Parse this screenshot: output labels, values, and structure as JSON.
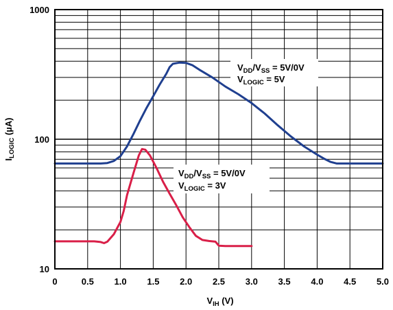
{
  "chart_data": {
    "type": "line",
    "title": "",
    "xlabel": {
      "main": "V",
      "sub": "IH",
      "unit": " (V)"
    },
    "ylabel": {
      "main": "I",
      "sub": "LOGIC",
      "unit": " (µA)"
    },
    "xlim": [
      0,
      5.0
    ],
    "ylim": [
      10,
      1000
    ],
    "yscale": "log",
    "grid": true,
    "xticks": [
      "0",
      "0.5",
      "1.0",
      "1.5",
      "2.0",
      "2.5",
      "3.0",
      "3.5",
      "4.0",
      "4.5",
      "5.0"
    ],
    "xtick_values": [
      0,
      0.5,
      1.0,
      1.5,
      2.0,
      2.5,
      3.0,
      3.5,
      4.0,
      4.5,
      5.0
    ],
    "yticks": [
      "10",
      "100",
      "1000"
    ],
    "ytick_values": [
      10,
      100,
      1000
    ],
    "series": [
      {
        "color": "#1f3f8f",
        "x": [
          0,
          0.5,
          0.7,
          0.8,
          0.9,
          1.0,
          1.1,
          1.2,
          1.3,
          1.4,
          1.5,
          1.6,
          1.7,
          1.75,
          1.8,
          1.9,
          2.0,
          2.1,
          2.2,
          2.4,
          2.6,
          2.8,
          3.0,
          3.2,
          3.4,
          3.6,
          3.8,
          4.0,
          4.1,
          4.2,
          4.3,
          4.5,
          5.0
        ],
        "y": [
          65,
          65,
          65,
          65.5,
          68,
          74,
          88,
          110,
          140,
          175,
          215,
          265,
          320,
          360,
          382,
          390,
          388,
          372,
          345,
          300,
          255,
          222,
          190,
          158,
          128,
          105,
          88,
          76,
          71,
          67,
          65,
          65,
          65
        ]
      },
      {
        "color": "#d91f48",
        "x": [
          0,
          0.5,
          0.6,
          0.7,
          0.75,
          0.8,
          0.9,
          1.0,
          1.05,
          1.1,
          1.2,
          1.28,
          1.33,
          1.38,
          1.45,
          1.55,
          1.65,
          1.75,
          1.85,
          1.95,
          2.05,
          2.15,
          2.25,
          2.35,
          2.45,
          2.5,
          2.6,
          3.0
        ],
        "y": [
          16.3,
          16.3,
          16.3,
          16.1,
          15.8,
          16.2,
          18.5,
          23,
          28,
          37,
          55,
          75,
          84,
          83,
          75,
          60,
          47,
          38,
          31,
          25,
          21,
          18,
          16.7,
          16.4,
          16.2,
          15.1,
          15.0,
          15.0
        ]
      }
    ],
    "annotations": [
      {
        "line1": {
          "v": "V",
          "s1": "DD",
          "m": "/V",
          "s2": "SS",
          "rest": " = 5V/0V"
        },
        "line2": {
          "v": "V",
          "s1": "LOGIC",
          "rest": " = 5V"
        }
      },
      {
        "line1": {
          "v": "V",
          "s1": "DD",
          "m": "/V",
          "s2": "SS",
          "rest": " = 5V/0V"
        },
        "line2": {
          "v": "V",
          "s1": "LOGIC",
          "rest": " = 3V"
        }
      }
    ]
  }
}
